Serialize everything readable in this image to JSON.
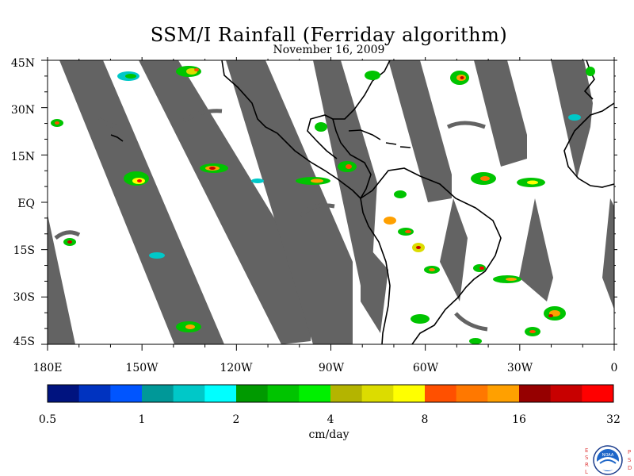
{
  "title": "SSM/I Rainfall (Ferriday algorithm)",
  "subtitle": "November 16, 2009",
  "lat_labels": [
    "45N",
    "30N",
    "15N",
    "EQ",
    "15S",
    "30S",
    "45S"
  ],
  "lon_labels": [
    "180E",
    "150W",
    "120W",
    "90W",
    "60W",
    "30W",
    "0"
  ],
  "colorbar": {
    "colors": [
      "#00137f",
      "#0033c0",
      "#0055ff",
      "#009898",
      "#00c8c8",
      "#00ffff",
      "#009a00",
      "#00c400",
      "#00f000",
      "#b4b400",
      "#dcdc00",
      "#ffff00",
      "#ff5000",
      "#ff7800",
      "#ffa000",
      "#960000",
      "#c80000",
      "#ff0000"
    ],
    "labels": [
      "0.5",
      "1",
      "2",
      "4",
      "8",
      "16",
      "32"
    ],
    "units": "cm/day"
  },
  "colors": {
    "no_data_swath": "#636363",
    "land_outline": "#000000"
  },
  "logo": {
    "left_text": "ESRL",
    "right_text": "PSD",
    "center": "NOAA"
  }
}
